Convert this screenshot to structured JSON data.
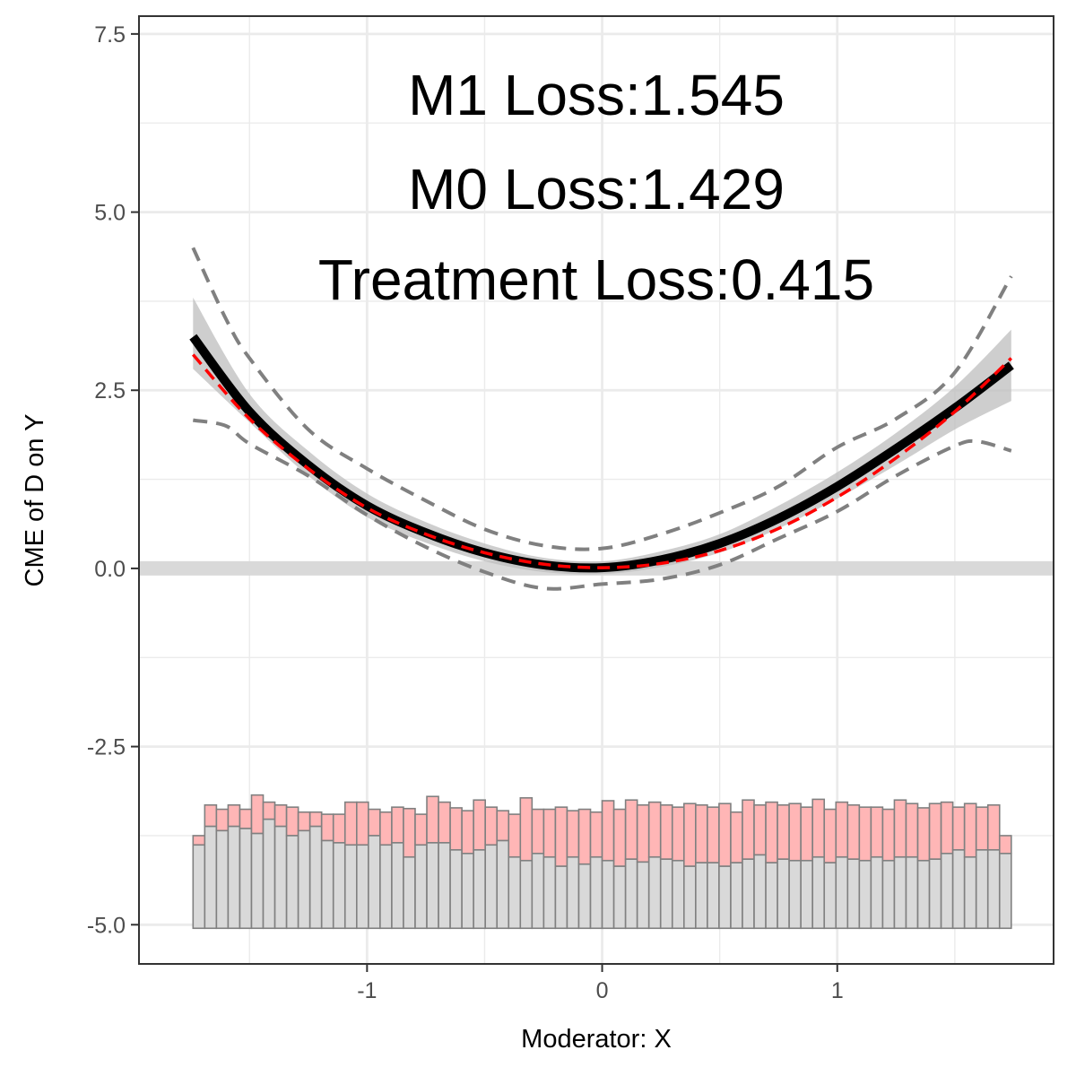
{
  "chart_data": {
    "type": "line",
    "xlabel": "Moderator: X",
    "ylabel": "CME of D on Y",
    "xlim": [
      -1.97,
      1.92
    ],
    "ylim": [
      -5.55,
      7.75
    ],
    "x_ticks": [
      -1,
      0,
      1
    ],
    "x_tick_labels": [
      "-1",
      "0",
      "1"
    ],
    "y_ticks": [
      -5.0,
      -2.5,
      0.0,
      2.5,
      5.0,
      7.5
    ],
    "y_tick_labels": [
      "-5.0",
      "-2.5",
      "0.0",
      "2.5",
      "5.0",
      "7.5"
    ],
    "grid": true,
    "annotations": [
      "M1 Loss:1.545",
      "M0 Loss:1.429",
      "Treatment Loss:0.415"
    ],
    "reference_line": {
      "y": 0
    },
    "colors": {
      "estimate": "#000000",
      "truth": "#ff0000",
      "ci_band": "#bdbdbd",
      "ci_dashed": "#808080",
      "hist_treated": "#ffb6b6",
      "hist_control": "#d9d9d9",
      "hist_stroke": "#808080",
      "grid": "#ebebeb",
      "reference": "#d9d9d9"
    },
    "series": [
      {
        "role": "estimate",
        "x": [
          -1.74,
          -1.5,
          -1.25,
          -1.0,
          -0.75,
          -0.5,
          -0.25,
          0.0,
          0.25,
          0.5,
          0.75,
          1.0,
          1.25,
          1.5,
          1.74
        ],
        "y": [
          3.25,
          2.2,
          1.45,
          0.88,
          0.5,
          0.22,
          0.05,
          0.01,
          0.12,
          0.35,
          0.7,
          1.15,
          1.68,
          2.25,
          2.85
        ]
      },
      {
        "role": "truth",
        "x": [
          -1.74,
          -1.5,
          -1.25,
          -1.0,
          -0.75,
          -0.5,
          -0.25,
          0.0,
          0.25,
          0.5,
          0.75,
          1.0,
          1.25,
          1.5,
          1.74
        ],
        "y": [
          3.0,
          2.1,
          1.4,
          0.85,
          0.48,
          0.22,
          0.06,
          0.01,
          0.07,
          0.25,
          0.56,
          1.0,
          1.55,
          2.2,
          2.95
        ]
      },
      {
        "role": "ci_band",
        "x": [
          -1.74,
          -1.5,
          -1.25,
          -1.0,
          -0.75,
          -0.5,
          -0.25,
          0.0,
          0.25,
          0.5,
          0.75,
          1.0,
          1.25,
          1.5,
          1.74
        ],
        "lower": [
          2.8,
          2.05,
          1.3,
          0.72,
          0.36,
          0.1,
          -0.05,
          -0.08,
          0.02,
          0.22,
          0.56,
          0.98,
          1.45,
          1.95,
          2.35
        ],
        "upper": [
          3.8,
          2.45,
          1.65,
          1.05,
          0.65,
          0.35,
          0.15,
          0.1,
          0.24,
          0.48,
          0.88,
          1.35,
          1.9,
          2.55,
          3.35
        ]
      },
      {
        "role": "ci_dashed_upper",
        "x": [
          -1.74,
          -1.6,
          -1.5,
          -1.25,
          -1.0,
          -0.75,
          -0.5,
          -0.25,
          0.0,
          0.25,
          0.5,
          0.75,
          1.0,
          1.25,
          1.5,
          1.74
        ],
        "y": [
          4.5,
          3.5,
          2.95,
          1.95,
          1.4,
          0.95,
          0.55,
          0.32,
          0.28,
          0.48,
          0.78,
          1.15,
          1.7,
          2.1,
          2.75,
          4.1
        ]
      },
      {
        "role": "ci_dashed_lower",
        "x": [
          -1.74,
          -1.6,
          -1.5,
          -1.25,
          -1.0,
          -0.75,
          -0.5,
          -0.25,
          0.0,
          0.25,
          0.5,
          0.75,
          1.0,
          1.25,
          1.5,
          1.6,
          1.74
        ],
        "y": [
          2.08,
          2.0,
          1.75,
          1.3,
          0.75,
          0.3,
          -0.05,
          -0.28,
          -0.22,
          -0.15,
          0.05,
          0.42,
          0.8,
          1.3,
          1.72,
          1.78,
          1.65
        ]
      }
    ],
    "histogram": {
      "x_start": -1.74,
      "x_end": 1.74,
      "baseline": -5.05,
      "control_tops": [
        -3.88,
        -3.62,
        -3.68,
        -3.62,
        -3.65,
        -3.72,
        -3.52,
        -3.62,
        -3.75,
        -3.68,
        -3.62,
        -3.82,
        -3.85,
        -3.88,
        -3.88,
        -3.75,
        -3.88,
        -3.85,
        -4.05,
        -3.88,
        -3.85,
        -3.85,
        -3.95,
        -4.0,
        -3.95,
        -3.88,
        -3.82,
        -4.05,
        -4.1,
        -4.0,
        -4.05,
        -4.18,
        -4.05,
        -4.15,
        -4.05,
        -4.1,
        -4.18,
        -4.08,
        -4.12,
        -4.05,
        -4.08,
        -4.1,
        -4.18,
        -4.13,
        -4.13,
        -4.18,
        -4.13,
        -4.08,
        -4.02,
        -4.13,
        -4.08,
        -4.1,
        -4.1,
        -4.05,
        -4.13,
        -4.05,
        -4.08,
        -4.1,
        -4.05,
        -4.1,
        -4.05,
        -4.05,
        -4.1,
        -4.08,
        -4.0,
        -3.95,
        -4.05,
        -3.95,
        -3.95,
        -4.0
      ],
      "treated_tops": [
        -3.75,
        -3.32,
        -3.38,
        -3.32,
        -3.38,
        -3.18,
        -3.28,
        -3.32,
        -3.35,
        -3.42,
        -3.42,
        -3.45,
        -3.45,
        -3.28,
        -3.28,
        -3.38,
        -3.42,
        -3.35,
        -3.37,
        -3.45,
        -3.2,
        -3.28,
        -3.36,
        -3.4,
        -3.25,
        -3.35,
        -3.4,
        -3.45,
        -3.22,
        -3.38,
        -3.38,
        -3.35,
        -3.4,
        -3.38,
        -3.42,
        -3.26,
        -3.38,
        -3.25,
        -3.32,
        -3.28,
        -3.32,
        -3.35,
        -3.3,
        -3.32,
        -3.35,
        -3.3,
        -3.42,
        -3.25,
        -3.32,
        -3.28,
        -3.32,
        -3.3,
        -3.35,
        -3.24,
        -3.38,
        -3.28,
        -3.32,
        -3.35,
        -3.35,
        -3.38,
        -3.25,
        -3.3,
        -3.36,
        -3.3,
        -3.28,
        -3.35,
        -3.3,
        -3.35,
        -3.32,
        -3.75
      ]
    }
  }
}
